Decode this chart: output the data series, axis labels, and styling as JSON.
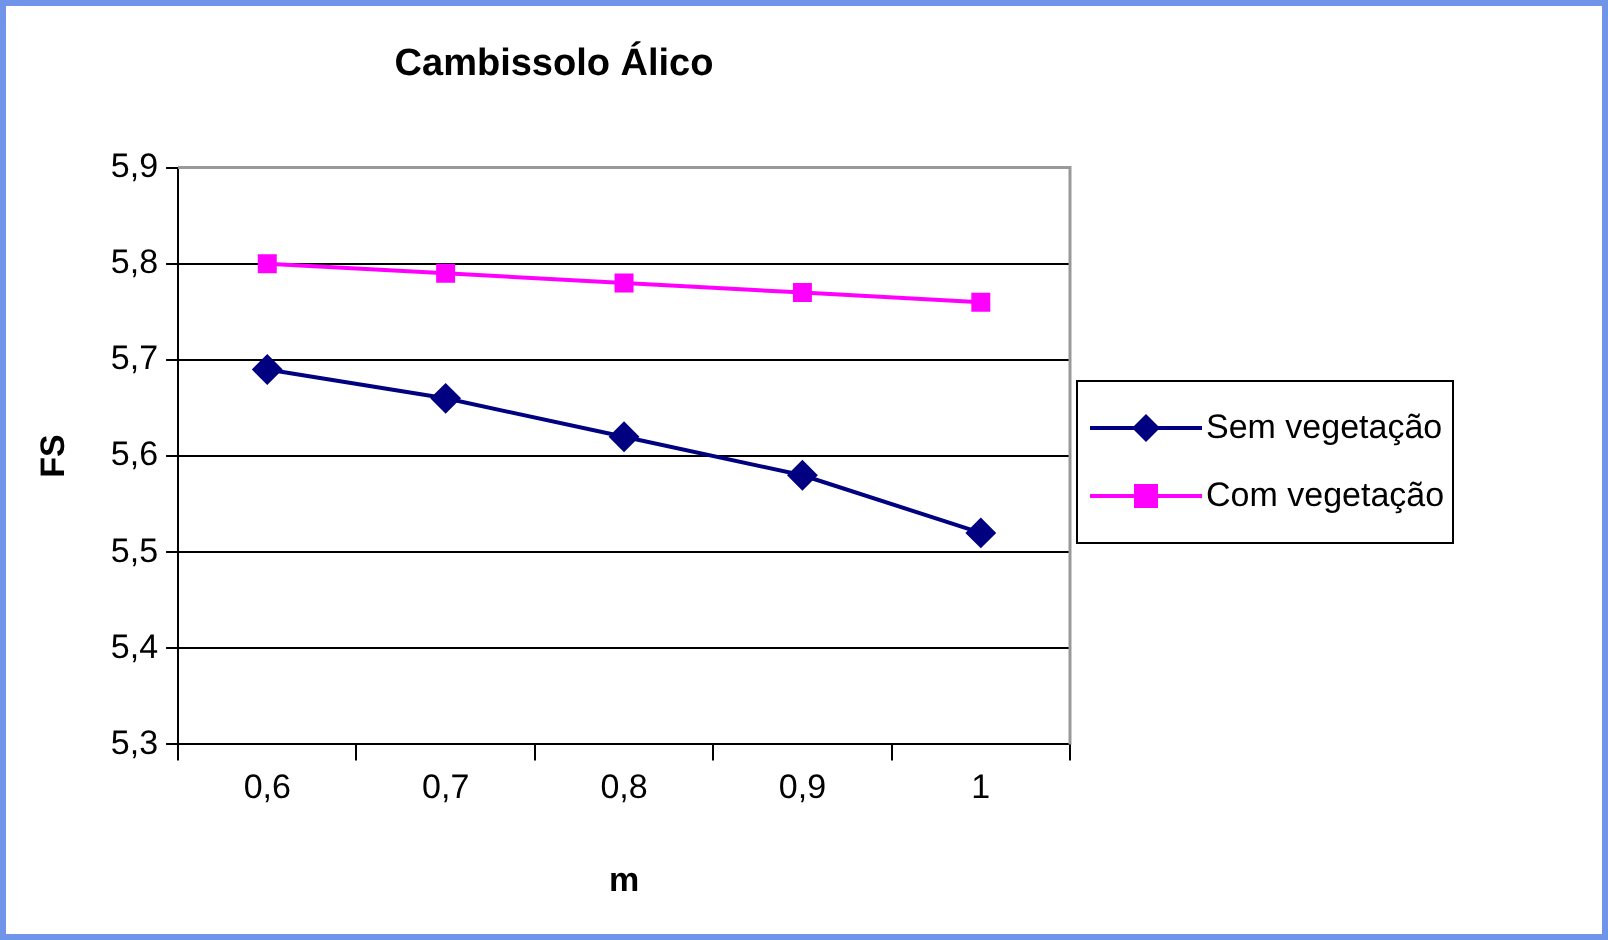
{
  "chart_data": {
    "type": "line",
    "title": "Cambissolo Álico",
    "xlabel": "m",
    "ylabel": "FS",
    "categories": [
      "0,6",
      "0,7",
      "0,8",
      "0,9",
      "1"
    ],
    "series": [
      {
        "name": "Sem vegetação",
        "color": "#000080",
        "marker": "diamond",
        "values": [
          5.69,
          5.66,
          5.62,
          5.58,
          5.52
        ]
      },
      {
        "name": "Com vegetação",
        "color": "#ff00ff",
        "marker": "square",
        "values": [
          5.8,
          5.79,
          5.78,
          5.77,
          5.76
        ]
      }
    ],
    "ylim": [
      5.3,
      5.9
    ],
    "yticks": [
      {
        "value": 5.3,
        "label": "5,3"
      },
      {
        "value": 5.4,
        "label": "5,4"
      },
      {
        "value": 5.5,
        "label": "5,5"
      },
      {
        "value": 5.6,
        "label": "5,6"
      },
      {
        "value": 5.7,
        "label": "5,7"
      },
      {
        "value": 5.8,
        "label": "5,8"
      },
      {
        "value": 5.9,
        "label": "5,9"
      }
    ],
    "grid": "y",
    "legend": "right",
    "line_style": "solid"
  }
}
